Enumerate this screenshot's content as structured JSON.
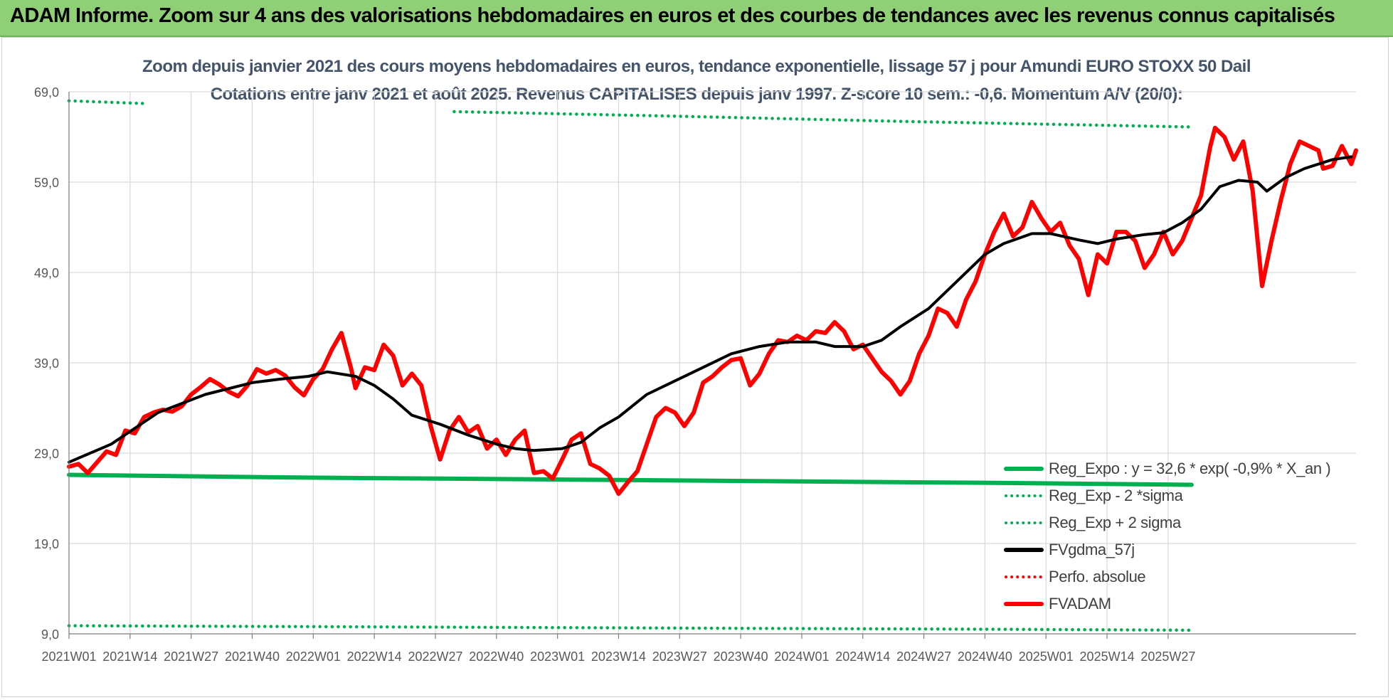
{
  "header": {
    "title": "ADAM Informe. Zoom sur 4 ans des valorisations hebdomadaires en euros et des courbes de tendances avec les revenus connus capitalisés"
  },
  "chart_data": {
    "type": "line",
    "title": "Zoom depuis janvier 2021 des cours moyens hebdomadaires en euros, tendance exponentielle, lissage 57 j pour Amundi EURO STOXX 50 Dail",
    "subtitle": "Cotations entre janv 2021 et août 2025. Revenus CAPITALISES depuis janv 1997. Z-score 10 sem.: -0,6. Momentum A/V (20/0):",
    "xlabel": "",
    "ylabel": "",
    "ylim": [
      9,
      69
    ],
    "grid": true,
    "legend_position": "bottom-right",
    "y_ticks": [
      "69,0",
      "59,0",
      "49,0",
      "39,0",
      "29,0",
      "19,0",
      "9,0"
    ],
    "x_ticks": [
      "2021W01",
      "2021W14",
      "2021W27",
      "2021W40",
      "2022W01",
      "2022W14",
      "2022W27",
      "2022W40",
      "2023W01",
      "2023W14",
      "2023W27",
      "2023W40",
      "2024W01",
      "2024W14",
      "2024W27",
      "2024W40",
      "2025W01",
      "2025W14",
      "2025W27"
    ],
    "series": [
      {
        "name": "Reg_Expo : y = 32,6 * exp( -0,9% *  X_an )",
        "color": "#00b050",
        "style": "solid",
        "points": [
          [
            1,
            26.6
          ],
          [
            50,
            26.3
          ],
          [
            100,
            26.1
          ],
          [
            150,
            25.9
          ],
          [
            200,
            25.7
          ],
          [
            240,
            25.5
          ]
        ]
      },
      {
        "name": "Reg_Exp - 2 *sigma",
        "color": "#00b050",
        "style": "dotted",
        "points": [
          [
            1,
            9.9
          ],
          [
            50,
            9.8
          ],
          [
            100,
            9.7
          ],
          [
            150,
            9.6
          ],
          [
            200,
            9.5
          ],
          [
            240,
            9.4
          ]
        ]
      },
      {
        "name": "Reg_Exp + 2 sigma",
        "color": "#00b050",
        "style": "dotted",
        "points": [
          [
            1,
            68.0
          ],
          [
            17,
            67.7
          ],
          [
            18,
            null
          ],
          [
            82,
            null
          ],
          [
            83,
            66.8
          ],
          [
            130,
            66.3
          ],
          [
            180,
            65.7
          ],
          [
            240,
            65.1
          ]
        ]
      },
      {
        "name": "FVgdma_57j",
        "color": "#000000",
        "style": "solid",
        "points": [
          [
            1,
            28
          ],
          [
            10,
            30
          ],
          [
            20,
            33.5
          ],
          [
            30,
            35.5
          ],
          [
            40,
            36.8
          ],
          [
            46,
            37.2
          ],
          [
            52,
            37.5
          ],
          [
            56,
            38
          ],
          [
            62,
            37.5
          ],
          [
            66,
            36.5
          ],
          [
            70,
            35
          ],
          [
            74,
            33.2
          ],
          [
            80,
            32.2
          ],
          [
            86,
            31
          ],
          [
            92,
            30
          ],
          [
            96,
            29.5
          ],
          [
            100,
            29.3
          ],
          [
            106,
            29.5
          ],
          [
            110,
            30.2
          ],
          [
            114,
            31.8
          ],
          [
            118,
            33
          ],
          [
            124,
            35.5
          ],
          [
            130,
            37
          ],
          [
            136,
            38.5
          ],
          [
            142,
            40
          ],
          [
            148,
            40.8
          ],
          [
            154,
            41.3
          ],
          [
            160,
            41.3
          ],
          [
            164,
            40.8
          ],
          [
            170,
            40.8
          ],
          [
            174,
            41.5
          ],
          [
            178,
            43
          ],
          [
            184,
            45
          ],
          [
            190,
            48
          ],
          [
            196,
            51
          ],
          [
            200,
            52.2
          ],
          [
            206,
            53.3
          ],
          [
            210,
            53.3
          ],
          [
            216,
            52.6
          ],
          [
            220,
            52.2
          ],
          [
            224,
            52.7
          ],
          [
            230,
            53.2
          ],
          [
            234,
            53.4
          ],
          [
            238,
            54.5
          ],
          [
            242,
            56
          ],
          [
            246,
            58.5
          ],
          [
            250,
            59.2
          ],
          [
            254,
            59
          ],
          [
            256,
            58
          ],
          [
            260,
            59.5
          ],
          [
            264,
            60.5
          ],
          [
            270,
            61.5
          ],
          [
            274,
            61.8
          ]
        ]
      },
      {
        "name": "Perfo. absolue",
        "color": "#ff0000",
        "style": "dotted",
        "points": []
      },
      {
        "name": "FVADAM",
        "color": "#ff0000",
        "style": "solid",
        "points": [
          [
            1,
            27.5
          ],
          [
            3,
            27.8
          ],
          [
            5,
            26.8
          ],
          [
            7,
            28
          ],
          [
            9,
            29.2
          ],
          [
            11,
            28.8
          ],
          [
            13,
            31.5
          ],
          [
            15,
            31.2
          ],
          [
            17,
            33
          ],
          [
            19,
            33.5
          ],
          [
            21,
            33.8
          ],
          [
            23,
            33.6
          ],
          [
            25,
            34.2
          ],
          [
            27,
            35.5
          ],
          [
            29,
            36.3
          ],
          [
            31,
            37.2
          ],
          [
            33,
            36.6
          ],
          [
            35,
            35.8
          ],
          [
            37,
            35.3
          ],
          [
            39,
            36.5
          ],
          [
            41,
            38.3
          ],
          [
            43,
            37.8
          ],
          [
            45,
            38.2
          ],
          [
            47,
            37.6
          ],
          [
            49,
            36.3
          ],
          [
            51,
            35.4
          ],
          [
            53,
            37.2
          ],
          [
            55,
            38.3
          ],
          [
            57,
            40.5
          ],
          [
            59,
            42.3
          ],
          [
            61,
            38.5
          ],
          [
            62,
            36.2
          ],
          [
            64,
            38.5
          ],
          [
            66,
            38.2
          ],
          [
            68,
            41
          ],
          [
            70,
            39.8
          ],
          [
            72,
            36.5
          ],
          [
            74,
            37.8
          ],
          [
            76,
            36.5
          ],
          [
            78,
            32
          ],
          [
            80,
            28.3
          ],
          [
            82,
            31.5
          ],
          [
            84,
            33
          ],
          [
            86,
            31.3
          ],
          [
            88,
            32
          ],
          [
            90,
            29.5
          ],
          [
            92,
            30.5
          ],
          [
            94,
            28.8
          ],
          [
            96,
            30.5
          ],
          [
            98,
            31.5
          ],
          [
            100,
            26.8
          ],
          [
            102,
            27
          ],
          [
            104,
            26.2
          ],
          [
            106,
            28.3
          ],
          [
            108,
            30.5
          ],
          [
            110,
            31.2
          ],
          [
            112,
            27.8
          ],
          [
            114,
            27.3
          ],
          [
            116,
            26.5
          ],
          [
            118,
            24.5
          ],
          [
            120,
            25.8
          ],
          [
            122,
            27
          ],
          [
            124,
            30
          ],
          [
            126,
            33
          ],
          [
            128,
            34
          ],
          [
            130,
            33.5
          ],
          [
            132,
            32
          ],
          [
            134,
            33.5
          ],
          [
            136,
            36.8
          ],
          [
            138,
            37.5
          ],
          [
            140,
            38.5
          ],
          [
            142,
            39.3
          ],
          [
            144,
            39.5
          ],
          [
            146,
            36.5
          ],
          [
            148,
            37.8
          ],
          [
            150,
            40
          ],
          [
            152,
            41.5
          ],
          [
            154,
            41.3
          ],
          [
            156,
            42
          ],
          [
            158,
            41.5
          ],
          [
            160,
            42.5
          ],
          [
            162,
            42.3
          ],
          [
            164,
            43.5
          ],
          [
            166,
            42.5
          ],
          [
            168,
            40.5
          ],
          [
            170,
            41
          ],
          [
            172,
            39.5
          ],
          [
            174,
            38
          ],
          [
            176,
            37
          ],
          [
            178,
            35.5
          ],
          [
            180,
            37
          ],
          [
            182,
            40
          ],
          [
            184,
            42
          ],
          [
            186,
            45
          ],
          [
            188,
            44.5
          ],
          [
            190,
            43
          ],
          [
            192,
            46
          ],
          [
            194,
            48
          ],
          [
            196,
            51
          ],
          [
            198,
            53.5
          ],
          [
            200,
            55.5
          ],
          [
            202,
            53
          ],
          [
            204,
            54
          ],
          [
            206,
            56.8
          ],
          [
            208,
            55
          ],
          [
            210,
            53.5
          ],
          [
            212,
            54.5
          ],
          [
            214,
            52
          ],
          [
            216,
            50.5
          ],
          [
            218,
            46.5
          ],
          [
            220,
            51
          ],
          [
            222,
            50
          ],
          [
            224,
            53.5
          ],
          [
            226,
            53.5
          ],
          [
            228,
            52.5
          ],
          [
            230,
            49.5
          ],
          [
            232,
            51
          ],
          [
            234,
            53.5
          ],
          [
            236,
            51
          ],
          [
            238,
            52.5
          ],
          [
            240,
            55
          ],
          [
            242,
            57.5
          ],
          [
            244,
            63
          ],
          [
            245,
            65
          ],
          [
            247,
            64
          ],
          [
            249,
            61.5
          ],
          [
            251,
            63.5
          ],
          [
            253,
            58
          ],
          [
            255,
            47.5
          ],
          [
            257,
            52.5
          ],
          [
            259,
            57
          ],
          [
            261,
            61
          ],
          [
            263,
            63.5
          ],
          [
            265,
            63
          ],
          [
            267,
            62.5
          ],
          [
            268,
            60.5
          ],
          [
            270,
            60.8
          ],
          [
            272,
            63
          ],
          [
            274,
            61
          ],
          [
            275,
            62.5
          ]
        ]
      }
    ]
  }
}
